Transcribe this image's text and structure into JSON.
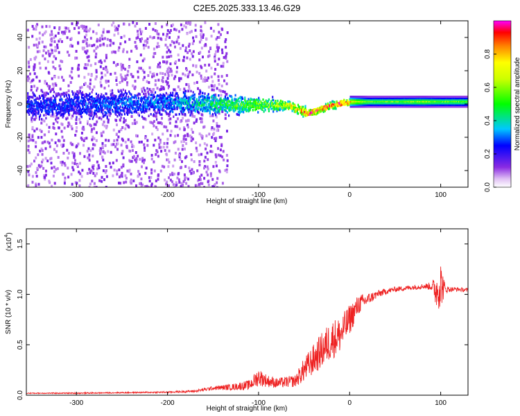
{
  "figure": {
    "title": "C2E5.2025.333.13.46.G29"
  },
  "chart_data": [
    {
      "type": "heatmap",
      "xlabel": "Height of straight line (km)",
      "ylabel": "Frequency (Hz)",
      "xlim": [
        -355,
        130
      ],
      "ylim": [
        -50,
        50
      ],
      "x_ticks": [
        -300,
        -200,
        -100,
        0,
        100
      ],
      "x_tick_labels": [
        "-300",
        "-200",
        "-100",
        "0",
        "100"
      ],
      "y_ticks": [
        -40,
        -20,
        0,
        20,
        40
      ],
      "y_tick_labels": [
        "-40",
        "-20",
        "0",
        "20",
        "40"
      ],
      "colorbar": {
        "label": "Normalized spectral amplitude",
        "range": [
          0,
          1
        ],
        "ticks": [
          0,
          0.2,
          0.4,
          0.6,
          0.8
        ],
        "tick_labels": [
          "0.0",
          "0.2",
          "0.4",
          "0.6",
          "0.8"
        ],
        "colormap": "rainbow",
        "colors": [
          "#ffffff",
          "#e8c8f8",
          "#8a2be2",
          "#0000ff",
          "#00ffff",
          "#00ff00",
          "#ffff00",
          "#ff0000",
          "#ff00ff"
        ]
      },
      "ridge": {
        "description_free": true,
        "x": [
          -355,
          -300,
          -250,
          -200,
          -160,
          -120,
          -90,
          -70,
          -55,
          -45,
          -40,
          -35,
          -30,
          -20,
          -10,
          0,
          20,
          50,
          80,
          100,
          130
        ],
        "freq": [
          0,
          0,
          1,
          1,
          1,
          0,
          0,
          0,
          -3,
          -5,
          -4,
          -3,
          -2,
          0,
          1,
          2,
          2,
          2,
          2,
          2,
          2
        ],
        "amplitude": [
          0.25,
          0.25,
          0.28,
          0.3,
          0.4,
          0.5,
          0.55,
          0.6,
          0.75,
          0.9,
          0.85,
          0.85,
          0.8,
          0.75,
          0.8,
          0.75,
          0.55,
          0.55,
          0.6,
          0.55,
          0.55
        ],
        "spread_hz": [
          8,
          8,
          8,
          7,
          6,
          5,
          4,
          3,
          3,
          2,
          2,
          2,
          2,
          2,
          2,
          2,
          2,
          2,
          2,
          2,
          2
        ]
      },
      "scatter_noise": {
        "x_range": [
          -355,
          -135
        ],
        "freq_range": [
          -50,
          50
        ],
        "amplitude": 0.1
      }
    },
    {
      "type": "line",
      "xlabel": "Height of straight line (km)",
      "ylabel": "SNR (10 * v/v)",
      "y_exponent_label": "(x10",
      "y_exponent_power": "4",
      "y_exponent_close": ")",
      "xlim": [
        -355,
        130
      ],
      "ylim": [
        0,
        1.65
      ],
      "x_ticks": [
        -300,
        -200,
        -100,
        0,
        100
      ],
      "x_tick_labels": [
        "-300",
        "-200",
        "-100",
        "0",
        "100"
      ],
      "y_ticks": [
        0,
        0.5,
        1.0,
        1.5
      ],
      "y_tick_labels": [
        "0.0",
        "0.5",
        "1.0",
        "1.5"
      ],
      "series": [
        {
          "color": "#ee2222",
          "x": [
            -355,
            -300,
            -250,
            -200,
            -170,
            -150,
            -130,
            -110,
            -100,
            -90,
            -80,
            -60,
            -50,
            -40,
            -30,
            -20,
            -10,
            0,
            10,
            20,
            30,
            40,
            50,
            60,
            70,
            80,
            90,
            95,
            100,
            105,
            110,
            120,
            130
          ],
          "y": [
            0.02,
            0.02,
            0.025,
            0.03,
            0.04,
            0.07,
            0.08,
            0.1,
            0.18,
            0.14,
            0.12,
            0.14,
            0.25,
            0.35,
            0.45,
            0.55,
            0.6,
            0.75,
            0.9,
            0.95,
            1.0,
            1.03,
            1.05,
            1.06,
            1.07,
            1.08,
            1.08,
            1.04,
            1.1,
            1.05,
            1.05,
            1.05,
            1.04
          ],
          "noise": [
            0.005,
            0.006,
            0.006,
            0.008,
            0.012,
            0.02,
            0.03,
            0.05,
            0.09,
            0.06,
            0.05,
            0.06,
            0.12,
            0.15,
            0.18,
            0.2,
            0.18,
            0.15,
            0.1,
            0.06,
            0.04,
            0.03,
            0.025,
            0.025,
            0.025,
            0.025,
            0.04,
            0.18,
            0.25,
            0.04,
            0.025,
            0.02,
            0.02
          ]
        }
      ]
    }
  ]
}
